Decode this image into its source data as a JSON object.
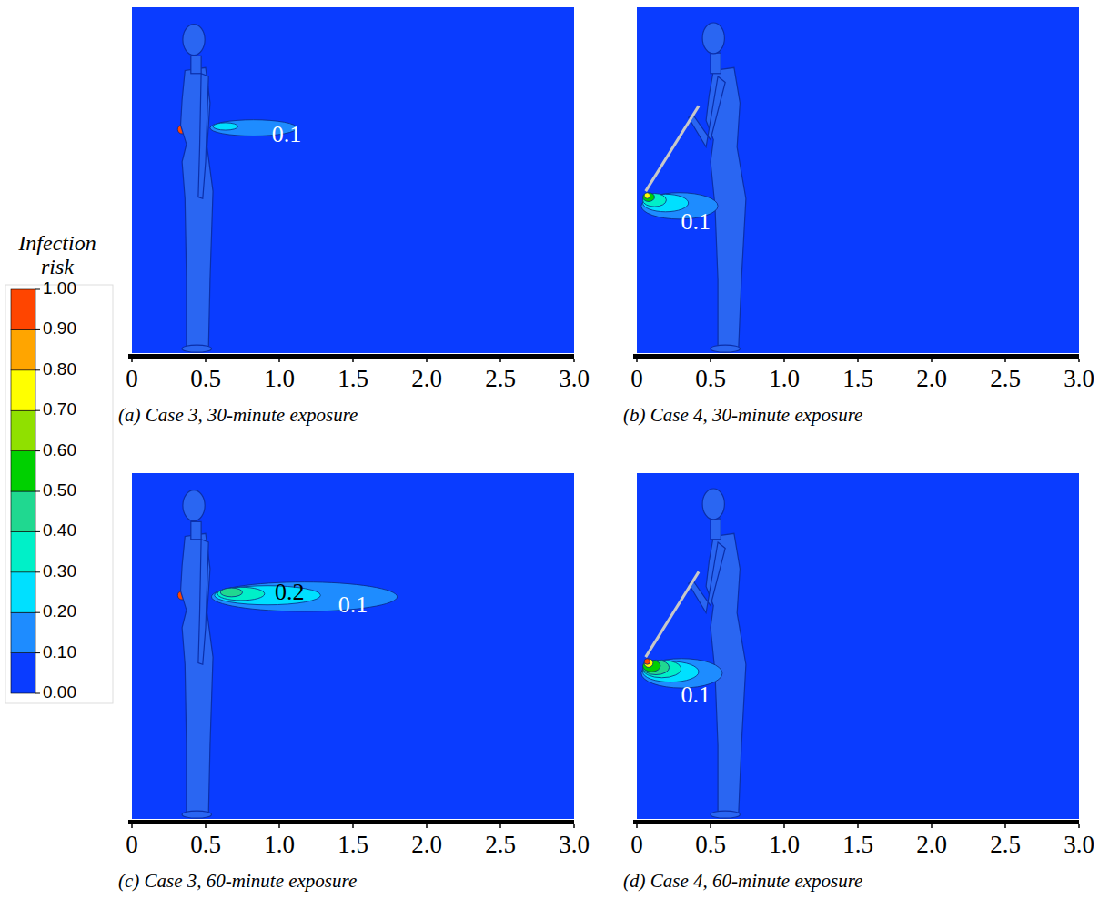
{
  "chart_data": [
    {
      "type": "contour",
      "title": "(a) Case 3, 30-minute exposure",
      "xlim": [
        0,
        3
      ],
      "ylim": [
        0,
        2.35
      ],
      "xticks": [
        0,
        0.5,
        {
          "value": 1,
          "label": "1.0"
        },
        1.5,
        {
          "value": 2,
          "label": "2.0"
        },
        2.5,
        {
          "value": 3,
          "label": "3.0"
        }
      ],
      "tick_labels": "x",
      "contours": [
        {
          "level": 0.1,
          "x": [
            0.53,
            1.12
          ],
          "y": 1.53,
          "half_height": 0.055
        },
        {
          "level": 0.2,
          "x": [
            0.55,
            0.72
          ],
          "y": 1.54,
          "half_height": 0.025
        },
        {
          "level": 0.9,
          "x": [
            0.31,
            0.37
          ],
          "y": 1.52,
          "half_height": 0.03
        }
      ],
      "annotations": [
        {
          "text": "0.1",
          "x": 1.05,
          "y": 1.47,
          "color": "#ffffff"
        }
      ]
    },
    {
      "type": "contour",
      "title": "(b) Case 4, 30-minute exposure",
      "xlim": [
        0,
        3
      ],
      "ylim": [
        0,
        2.35
      ],
      "xticks": [
        0,
        0.5,
        {
          "value": 1,
          "label": "1.0"
        },
        1.5,
        {
          "value": 2,
          "label": "2.0"
        },
        2.5,
        {
          "value": 3,
          "label": "3.0"
        }
      ],
      "tick_labels": "x",
      "contours": [
        {
          "level": 0.1,
          "x": [
            0.03,
            0.55
          ],
          "y": 1.0,
          "half_height": 0.09
        },
        {
          "level": 0.2,
          "x": [
            0.04,
            0.35
          ],
          "y": 1.02,
          "half_height": 0.06
        },
        {
          "level": 0.3,
          "x": [
            0.04,
            0.2
          ],
          "y": 1.04,
          "half_height": 0.045
        },
        {
          "level": 0.5,
          "x": [
            0.04,
            0.12
          ],
          "y": 1.06,
          "half_height": 0.03
        },
        {
          "level": 0.7,
          "x": [
            0.05,
            0.09
          ],
          "y": 1.07,
          "half_height": 0.02
        }
      ],
      "annotations": [
        {
          "text": "0.1",
          "x": 0.4,
          "y": 0.88,
          "color": "#ffffff"
        }
      ]
    },
    {
      "type": "contour",
      "title": "(c) Case 3, 60-minute exposure",
      "xlim": [
        0,
        3
      ],
      "ylim": [
        0,
        2.35
      ],
      "xticks": [
        0,
        0.5,
        {
          "value": 1,
          "label": "1.0"
        },
        1.5,
        {
          "value": 2,
          "label": "2.0"
        },
        2.5,
        {
          "value": 3,
          "label": "3.0"
        }
      ],
      "tick_labels": "x",
      "contours": [
        {
          "level": 0.1,
          "x": [
            0.54,
            1.8
          ],
          "y": 1.51,
          "half_height": 0.1
        },
        {
          "level": 0.2,
          "x": [
            0.56,
            1.28
          ],
          "y": 1.52,
          "half_height": 0.065
        },
        {
          "level": 0.3,
          "x": [
            0.58,
            0.9
          ],
          "y": 1.53,
          "half_height": 0.045
        },
        {
          "level": 0.4,
          "x": [
            0.6,
            0.75
          ],
          "y": 1.54,
          "half_height": 0.03
        },
        {
          "level": 0.9,
          "x": [
            0.31,
            0.37
          ],
          "y": 1.52,
          "half_height": 0.03
        }
      ],
      "annotations": [
        {
          "text": "0.2",
          "x": 1.07,
          "y": 1.53,
          "color": "#000000"
        },
        {
          "text": "0.1",
          "x": 1.5,
          "y": 1.44,
          "color": "#ffffff"
        }
      ]
    },
    {
      "type": "contour",
      "title": "(d) Case 4, 60-minute exposure",
      "xlim": [
        0,
        3
      ],
      "ylim": [
        0,
        2.35
      ],
      "xticks": [
        0,
        0.5,
        {
          "value": 1,
          "label": "1.0"
        },
        1.5,
        {
          "value": 2,
          "label": "2.0"
        },
        2.5,
        {
          "value": 3,
          "label": "3.0"
        }
      ],
      "tick_labels": "x",
      "contours": [
        {
          "level": 0.1,
          "x": [
            0.03,
            0.58
          ],
          "y": 0.99,
          "half_height": 0.1
        },
        {
          "level": 0.2,
          "x": [
            0.04,
            0.42
          ],
          "y": 1.0,
          "half_height": 0.07
        },
        {
          "level": 0.3,
          "x": [
            0.04,
            0.3
          ],
          "y": 1.02,
          "half_height": 0.06
        },
        {
          "level": 0.4,
          "x": [
            0.04,
            0.22
          ],
          "y": 1.03,
          "half_height": 0.05
        },
        {
          "level": 0.5,
          "x": [
            0.04,
            0.16
          ],
          "y": 1.04,
          "half_height": 0.04
        },
        {
          "level": 0.7,
          "x": [
            0.05,
            0.11
          ],
          "y": 1.06,
          "half_height": 0.03
        },
        {
          "level": 0.9,
          "x": [
            0.05,
            0.09
          ],
          "y": 1.07,
          "half_height": 0.02
        }
      ],
      "annotations": [
        {
          "text": "0.1",
          "x": 0.4,
          "y": 0.83,
          "color": "#ffffff"
        }
      ]
    }
  ],
  "colorbar": {
    "title": "Infection risk",
    "range": [
      0,
      1
    ],
    "ticks": [
      {
        "value": 0,
        "label": "0.00"
      },
      {
        "value": 0.1,
        "label": "0.10"
      },
      {
        "value": 0.2,
        "label": "0.20"
      },
      {
        "value": 0.3,
        "label": "0.30"
      },
      {
        "value": 0.4,
        "label": "0.40"
      },
      {
        "value": 0.5,
        "label": "0.50"
      },
      {
        "value": 0.6,
        "label": "0.60"
      },
      {
        "value": 0.7,
        "label": "0.70"
      },
      {
        "value": 0.8,
        "label": "0.80"
      },
      {
        "value": 0.9,
        "label": "0.90"
      },
      {
        "value": 1,
        "label": "1.00"
      }
    ],
    "colors": [
      "#0a3cff",
      "#1e8cff",
      "#00e0ff",
      "#00f0c8",
      "#20d890",
      "#00d000",
      "#90e000",
      "#ffff00",
      "#ffa500",
      "#ff4500"
    ]
  }
}
